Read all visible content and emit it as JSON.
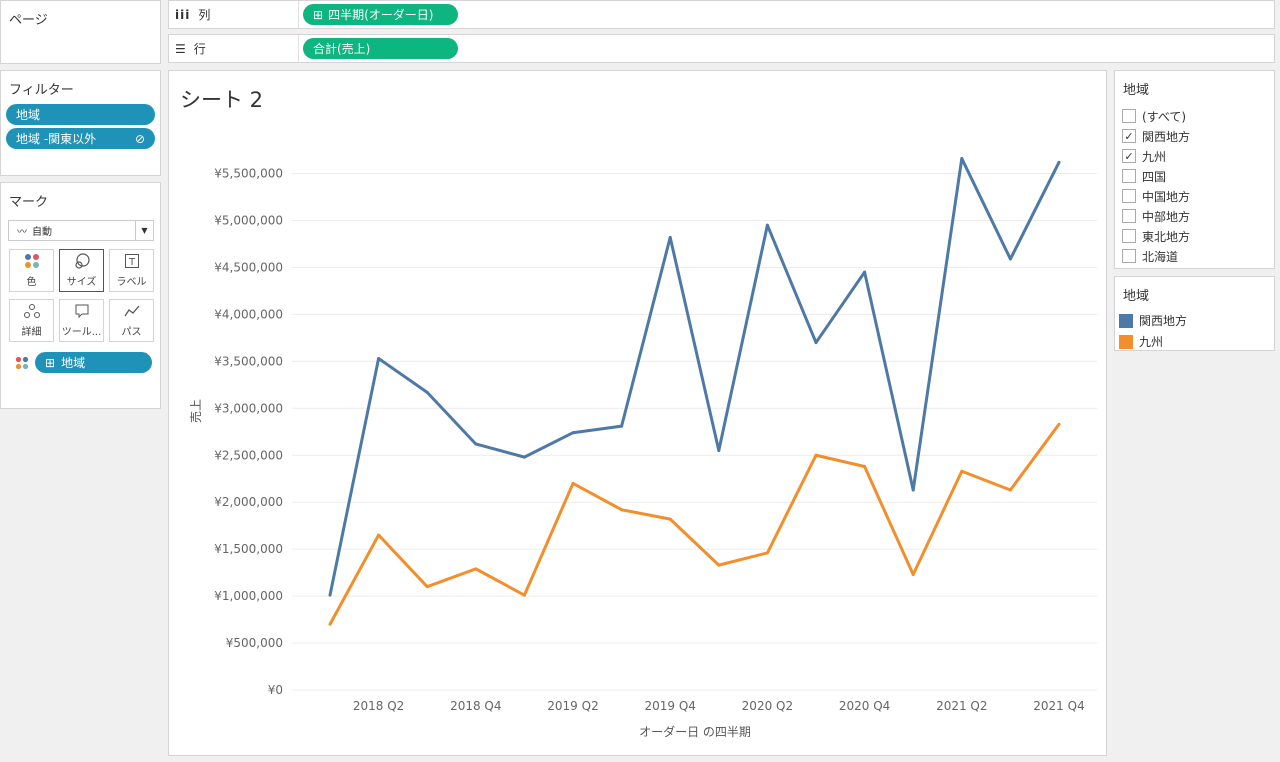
{
  "pages_shelf": {
    "label": "ページ"
  },
  "columns_shelf": {
    "label": "列",
    "pill": "四半期(オーダー日)"
  },
  "rows_shelf": {
    "label": "行",
    "pill": "合計(売上)"
  },
  "filters": {
    "title": "フィルター",
    "items": [
      "地域",
      "地域 -関東以外"
    ]
  },
  "marks": {
    "title": "マーク",
    "type": "自動",
    "buttons": [
      "色",
      "サイズ",
      "ラベル",
      "詳細",
      "ツール...",
      "パス"
    ],
    "field_pill": "地域"
  },
  "sheet": {
    "title": "シート 2"
  },
  "region_filter": {
    "title": "地域",
    "items": [
      {
        "label": "(すべて)",
        "checked": false
      },
      {
        "label": "関西地方",
        "checked": true
      },
      {
        "label": "九州",
        "checked": true
      },
      {
        "label": "四国",
        "checked": false
      },
      {
        "label": "中国地方",
        "checked": false
      },
      {
        "label": "中部地方",
        "checked": false
      },
      {
        "label": "東北地方",
        "checked": false
      },
      {
        "label": "北海道",
        "checked": false
      }
    ]
  },
  "legend": {
    "title": "地域",
    "items": [
      {
        "label": "関西地方",
        "color": "#4e79a7"
      },
      {
        "label": "九州",
        "color": "#f28e2b"
      }
    ]
  },
  "chart_data": {
    "type": "line",
    "title": "シート 2",
    "xlabel": "オーダー日 の四半期",
    "ylabel": "売上",
    "categories": [
      "2018 Q1",
      "2018 Q2",
      "2018 Q3",
      "2018 Q4",
      "2019 Q1",
      "2019 Q2",
      "2019 Q3",
      "2019 Q4",
      "2020 Q1",
      "2020 Q2",
      "2020 Q3",
      "2020 Q4",
      "2021 Q1",
      "2021 Q2",
      "2021 Q3",
      "2021 Q4"
    ],
    "x_tick_labels": [
      "2018 Q2",
      "2018 Q4",
      "2019 Q2",
      "2019 Q4",
      "2020 Q2",
      "2020 Q4",
      "2021 Q2",
      "2021 Q4"
    ],
    "x_tick_indices": [
      1,
      3,
      5,
      7,
      9,
      11,
      13,
      15
    ],
    "ylim": [
      0,
      5500000
    ],
    "y_ticks": [
      0,
      500000,
      1000000,
      1500000,
      2000000,
      2500000,
      3000000,
      3500000,
      4000000,
      4500000,
      5000000,
      5500000
    ],
    "y_tick_labels": [
      "¥0",
      "¥500,000",
      "¥1,000,000",
      "¥1,500,000",
      "¥2,000,000",
      "¥2,500,000",
      "¥3,000,000",
      "¥3,500,000",
      "¥4,000,000",
      "¥4,500,000",
      "¥5,000,000",
      "¥5,500,000"
    ],
    "series": [
      {
        "name": "関西地方",
        "color": "#4e79a7",
        "values": [
          1010000,
          3530000,
          3170000,
          2620000,
          2480000,
          2740000,
          2810000,
          4820000,
          2550000,
          4950000,
          3700000,
          4450000,
          2130000,
          5660000,
          4590000,
          5620000
        ]
      },
      {
        "name": "九州",
        "color": "#f28e2b",
        "values": [
          700000,
          1650000,
          1100000,
          1290000,
          1010000,
          2200000,
          1920000,
          1820000,
          1330000,
          1460000,
          2500000,
          2380000,
          1230000,
          2330000,
          2130000,
          2830000
        ]
      }
    ]
  }
}
